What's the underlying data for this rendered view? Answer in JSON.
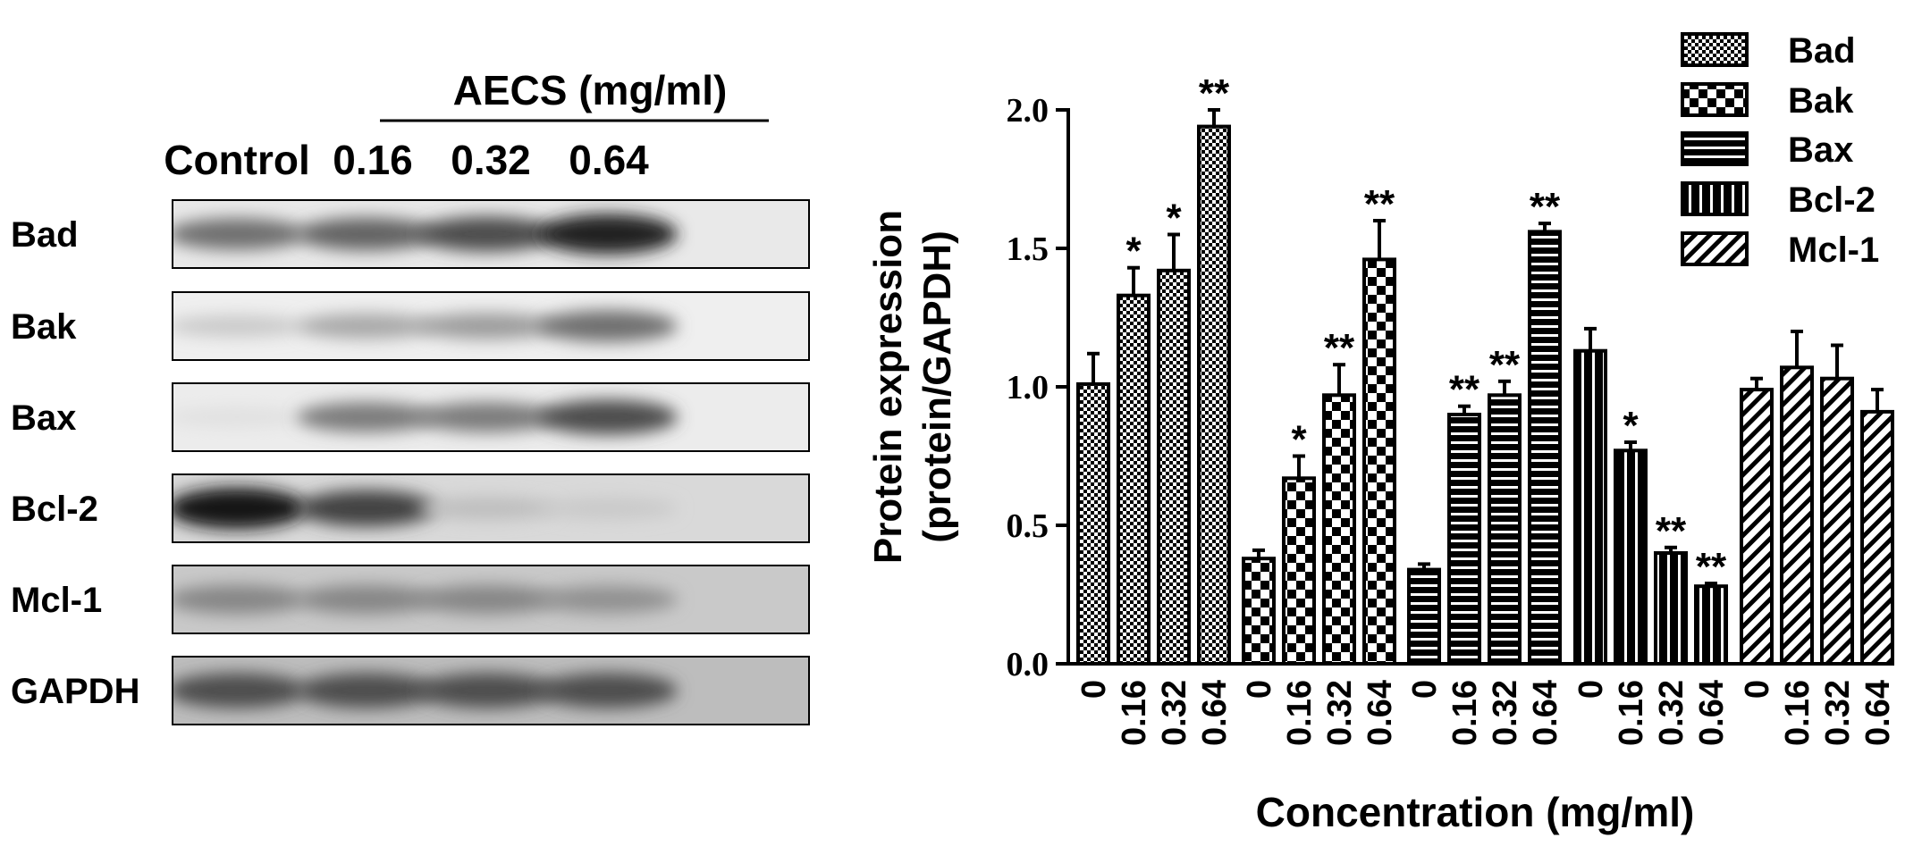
{
  "blot": {
    "header": "AECS (mg/ml)",
    "lanes": [
      "Control",
      "0.16",
      "0.32",
      "0.64"
    ],
    "rows": [
      {
        "label": "Bad",
        "intensity": [
          0.55,
          0.6,
          0.7,
          0.9
        ],
        "bg": "#e9e9e9"
      },
      {
        "label": "Bak",
        "intensity": [
          0.15,
          0.3,
          0.35,
          0.55
        ],
        "bg": "#efefef"
      },
      {
        "label": "Bax",
        "intensity": [
          0.05,
          0.5,
          0.5,
          0.7
        ],
        "bg": "#ececec"
      },
      {
        "label": "Bcl-2",
        "intensity": [
          0.95,
          0.75,
          0.2,
          0.15
        ],
        "bg": "#d9d9d9"
      },
      {
        "label": "Mcl-1",
        "intensity": [
          0.45,
          0.45,
          0.45,
          0.4
        ],
        "bg": "#c9c9c9"
      },
      {
        "label": "GAPDH",
        "intensity": [
          0.7,
          0.7,
          0.7,
          0.7
        ],
        "bg": "#bdbdbd"
      }
    ]
  },
  "chart_data": {
    "type": "bar",
    "ylabel_line1": "Protein expression",
    "ylabel_line2": "(protein/GAPDH)",
    "xlabel": "Concentration (mg/ml)",
    "ylim": [
      0,
      2.0
    ],
    "yticks": [
      "0.0",
      "0.5",
      "1.0",
      "1.5",
      "2.0"
    ],
    "categories": [
      "0",
      "0.16",
      "0.32",
      "0.64"
    ],
    "legend_position": "top-right",
    "series": [
      {
        "name": "Bad",
        "pattern": "checker",
        "values": [
          1.01,
          1.33,
          1.42,
          1.94
        ],
        "errors": [
          0.11,
          0.1,
          0.13,
          0.06
        ],
        "sig": [
          "",
          "*",
          "*",
          "**"
        ]
      },
      {
        "name": "Bak",
        "pattern": "bigcheck",
        "values": [
          0.38,
          0.67,
          0.97,
          1.46
        ],
        "errors": [
          0.03,
          0.08,
          0.11,
          0.14
        ],
        "sig": [
          "",
          "*",
          "**",
          "**"
        ]
      },
      {
        "name": "Bax",
        "pattern": "hlines",
        "values": [
          0.34,
          0.9,
          0.97,
          1.56
        ],
        "errors": [
          0.02,
          0.03,
          0.05,
          0.03
        ],
        "sig": [
          "",
          "**",
          "**",
          "**"
        ]
      },
      {
        "name": "Bcl-2",
        "pattern": "vlines",
        "values": [
          1.13,
          0.77,
          0.4,
          0.28
        ],
        "errors": [
          0.08,
          0.03,
          0.02,
          0.01
        ],
        "sig": [
          "",
          "*",
          "**",
          "**"
        ]
      },
      {
        "name": "Mcl-1",
        "pattern": "diag",
        "values": [
          0.99,
          1.07,
          1.03,
          0.91
        ],
        "errors": [
          0.04,
          0.13,
          0.12,
          0.08
        ],
        "sig": [
          "",
          "",
          "",
          ""
        ]
      }
    ]
  }
}
